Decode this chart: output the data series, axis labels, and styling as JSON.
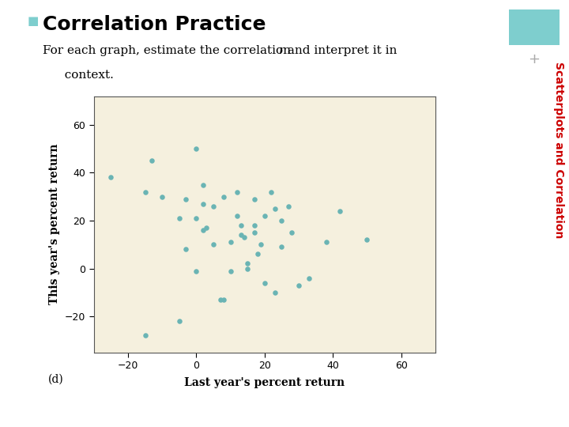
{
  "title": "Correlation Practice",
  "subtitle_main": "For each graph, estimate the correlation ",
  "subtitle_italic": "r",
  "subtitle_end": " and interpret it in",
  "subtitle_line2": "  context.",
  "xlabel": "Last year's percent return",
  "ylabel": "This year's percent return",
  "label_d": "(d)",
  "sidebar_text": "Scatterplots and Correlation",
  "title_bullet_color": "#7ecece",
  "sidebar_color": "#cc0000",
  "dot_color": "#6ab4b4",
  "plot_bg": "#f5f0de",
  "page_bg": "#ffffff",
  "xlim": [
    -30,
    70
  ],
  "ylim": [
    -35,
    72
  ],
  "xticks": [
    -20,
    0,
    20,
    40,
    60
  ],
  "yticks": [
    -20,
    0,
    20,
    40,
    60
  ],
  "scatter_x": [
    -25,
    -15,
    -15,
    -13,
    -10,
    -5,
    -5,
    -3,
    -3,
    0,
    0,
    0,
    2,
    2,
    2,
    3,
    5,
    5,
    7,
    8,
    8,
    10,
    10,
    12,
    12,
    13,
    13,
    14,
    15,
    15,
    17,
    17,
    17,
    18,
    19,
    20,
    20,
    22,
    23,
    23,
    25,
    25,
    27,
    28,
    30,
    33,
    38,
    42,
    50
  ],
  "scatter_y": [
    38,
    32,
    -28,
    45,
    30,
    21,
    -22,
    8,
    29,
    -1,
    50,
    21,
    16,
    27,
    35,
    17,
    26,
    10,
    -13,
    -13,
    30,
    -1,
    11,
    32,
    22,
    14,
    18,
    13,
    2,
    0,
    29,
    15,
    18,
    6,
    10,
    -6,
    22,
    32,
    -10,
    25,
    9,
    20,
    26,
    15,
    -7,
    -4,
    11,
    24,
    12
  ],
  "figsize": [
    7.2,
    5.4
  ],
  "dpi": 100,
  "teal_rect_color": "#7ecece",
  "plus_color": "#aaaaaa",
  "title_fontsize": 18,
  "subtitle_fontsize": 11,
  "axis_label_fontsize": 10,
  "tick_fontsize": 9,
  "sidebar_fontsize": 10,
  "dot_size": 22
}
